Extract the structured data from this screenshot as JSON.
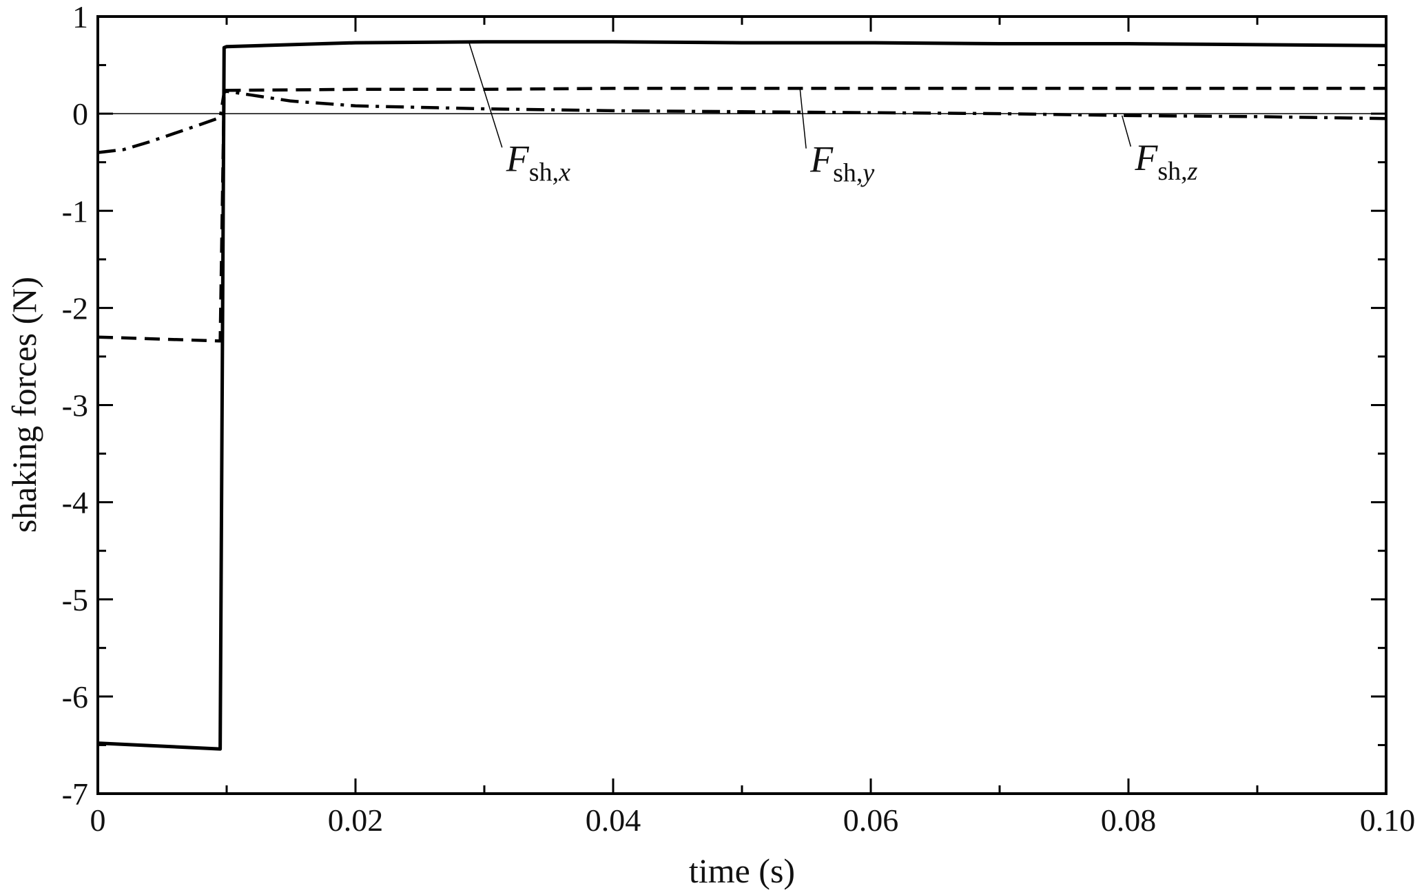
{
  "chart_data": {
    "type": "line",
    "title": "",
    "xlabel": "time (s)",
    "ylabel": "shaking forces (N)",
    "xlim": [
      0,
      0.1
    ],
    "ylim": [
      -7,
      1
    ],
    "x_ticks": [
      0,
      0.02,
      0.04,
      0.06,
      0.08,
      0.1
    ],
    "x_tick_labels": [
      "0",
      "0.02",
      "0.04",
      "0.06",
      "0.08",
      "0.10"
    ],
    "y_ticks": [
      -7,
      -6,
      -5,
      -4,
      -3,
      -2,
      -1,
      0,
      1
    ],
    "y_tick_labels": [
      "-7",
      "-6",
      "-5",
      "-4",
      "-3",
      "-2",
      "-1",
      "0",
      "1"
    ],
    "grid": false,
    "zero_line": true,
    "legend": "inline annotations",
    "series": [
      {
        "name": "Fsh,x",
        "label_main": "F",
        "label_sub": "sh,",
        "label_var": "x",
        "style": "solid",
        "points": [
          [
            0,
            -6.48
          ],
          [
            0.0095,
            -6.54
          ],
          [
            0.0098,
            0.68
          ],
          [
            0.01,
            0.69
          ],
          [
            0.02,
            0.73
          ],
          [
            0.03,
            0.74
          ],
          [
            0.04,
            0.74
          ],
          [
            0.05,
            0.73
          ],
          [
            0.06,
            0.73
          ],
          [
            0.07,
            0.72
          ],
          [
            0.08,
            0.72
          ],
          [
            0.09,
            0.71
          ],
          [
            0.1,
            0.7
          ]
        ]
      },
      {
        "name": "Fsh,y",
        "label_main": "F",
        "label_sub": "sh,",
        "label_var": "y",
        "style": "dashed",
        "points": [
          [
            0,
            -2.3
          ],
          [
            0.0095,
            -2.34
          ],
          [
            0.0098,
            0.24
          ],
          [
            0.01,
            0.24
          ],
          [
            0.02,
            0.25
          ],
          [
            0.03,
            0.25
          ],
          [
            0.04,
            0.26
          ],
          [
            0.05,
            0.26
          ],
          [
            0.06,
            0.26
          ],
          [
            0.07,
            0.26
          ],
          [
            0.08,
            0.26
          ],
          [
            0.09,
            0.26
          ],
          [
            0.1,
            0.26
          ]
        ]
      },
      {
        "name": "Fsh,z",
        "label_main": "F",
        "label_sub": "sh,",
        "label_var": "z",
        "style": "dashdot",
        "points": [
          [
            0,
            -0.4
          ],
          [
            0.002,
            -0.37
          ],
          [
            0.004,
            -0.29
          ],
          [
            0.006,
            -0.2
          ],
          [
            0.008,
            -0.11
          ],
          [
            0.0095,
            -0.04
          ],
          [
            0.0098,
            0.22
          ],
          [
            0.01,
            0.23
          ],
          [
            0.012,
            0.19
          ],
          [
            0.015,
            0.13
          ],
          [
            0.02,
            0.08
          ],
          [
            0.03,
            0.05
          ],
          [
            0.04,
            0.03
          ],
          [
            0.05,
            0.02
          ],
          [
            0.06,
            0.01
          ],
          [
            0.07,
            0.0
          ],
          [
            0.08,
            -0.02
          ],
          [
            0.09,
            -0.03
          ],
          [
            0.1,
            -0.05
          ]
        ]
      }
    ]
  }
}
